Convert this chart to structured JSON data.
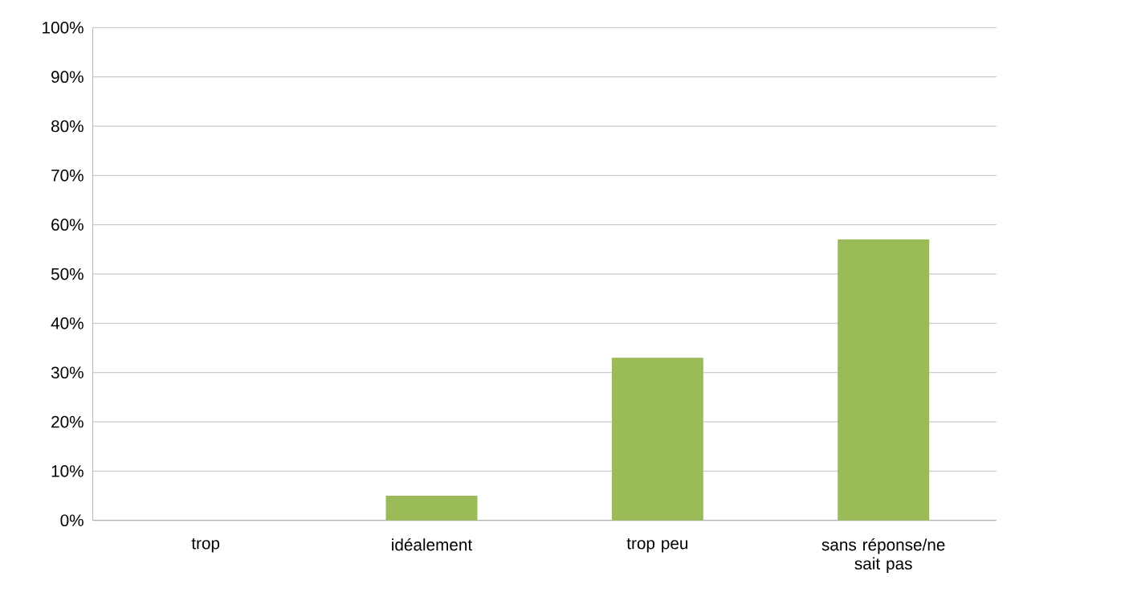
{
  "chart_data": {
    "type": "bar",
    "categories": [
      "trop",
      "idéalement",
      "trop peu",
      "sans réponse/ne sait pas"
    ],
    "values": [
      0,
      5,
      33,
      57
    ],
    "color": "#9bbb59",
    "ylim": [
      0,
      100
    ],
    "yticks": [
      {
        "value": 0,
        "label": "0%"
      },
      {
        "value": 10,
        "label": "10%"
      },
      {
        "value": 20,
        "label": "20%"
      },
      {
        "value": 30,
        "label": "30%"
      },
      {
        "value": 40,
        "label": "40%"
      },
      {
        "value": 50,
        "label": "50%"
      },
      {
        "value": 60,
        "label": "60%"
      },
      {
        "value": 70,
        "label": "70%"
      },
      {
        "value": 80,
        "label": "80%"
      },
      {
        "value": 90,
        "label": "90%"
      },
      {
        "value": 100,
        "label": "100%"
      }
    ],
    "grid": "y"
  }
}
